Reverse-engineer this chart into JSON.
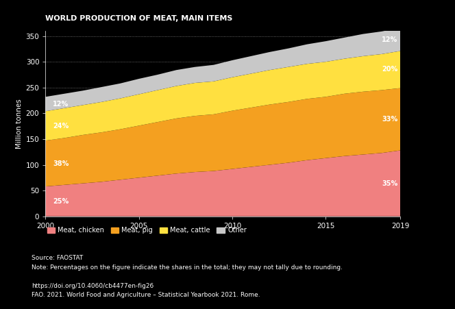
{
  "title": "WORLD PRODUCTION OF MEAT, MAIN ITEMS",
  "ylabel": "Million tonnes",
  "years": [
    2000,
    2001,
    2002,
    2003,
    2004,
    2005,
    2006,
    2007,
    2008,
    2009,
    2010,
    2011,
    2012,
    2013,
    2014,
    2015,
    2016,
    2017,
    2018,
    2019
  ],
  "chicken": [
    58,
    61,
    64,
    67,
    71,
    75,
    79,
    83,
    86,
    88,
    92,
    96,
    100,
    104,
    109,
    113,
    117,
    120,
    123,
    128
  ],
  "pig": [
    89,
    91,
    94,
    96,
    98,
    101,
    104,
    107,
    109,
    110,
    113,
    115,
    117,
    118,
    119,
    119,
    121,
    122,
    122,
    121
  ],
  "cattle": [
    57,
    58,
    58,
    59,
    60,
    61,
    62,
    63,
    64,
    64,
    65,
    66,
    67,
    68,
    68,
    68,
    68,
    69,
    70,
    72
  ],
  "other": [
    28,
    28,
    28,
    29,
    29,
    30,
    30,
    31,
    31,
    32,
    33,
    34,
    35,
    36,
    38,
    40,
    41,
    43,
    44,
    45
  ],
  "color_chicken": "#F08080",
  "color_pig": "#F4A020",
  "color_cattle": "#FFE040",
  "color_other": "#C8C8C8",
  "pct_2000_chicken": "25%",
  "pct_2000_pig": "38%",
  "pct_2000_cattle": "24%",
  "pct_2000_other": "12%",
  "pct_2019_chicken": "35%",
  "pct_2019_pig": "33%",
  "pct_2019_cattle": "20%",
  "pct_2019_other": "12%",
  "ylim": [
    0,
    360
  ],
  "yticks": [
    0,
    50,
    100,
    150,
    200,
    250,
    300,
    350
  ],
  "xticks": [
    2000,
    2005,
    2010,
    2015,
    2019
  ],
  "source_text1": "Source: FAOSTAT",
  "source_text2": "Note: Percentages on the figure indicate the shares in the total; they may not tally due to rounding.",
  "source_text3": "https://doi.org/10.4060/cb4477en-fig26",
  "source_text4": "FAO. 2021. World Food and Agriculture – Statistical Yearbook 2021. Rome.",
  "legend_labels": [
    "Meat, chicken",
    "Meat, pig",
    "Meat, cattle",
    "Other"
  ],
  "bg_color": "#000000",
  "text_color": "#ffffff"
}
